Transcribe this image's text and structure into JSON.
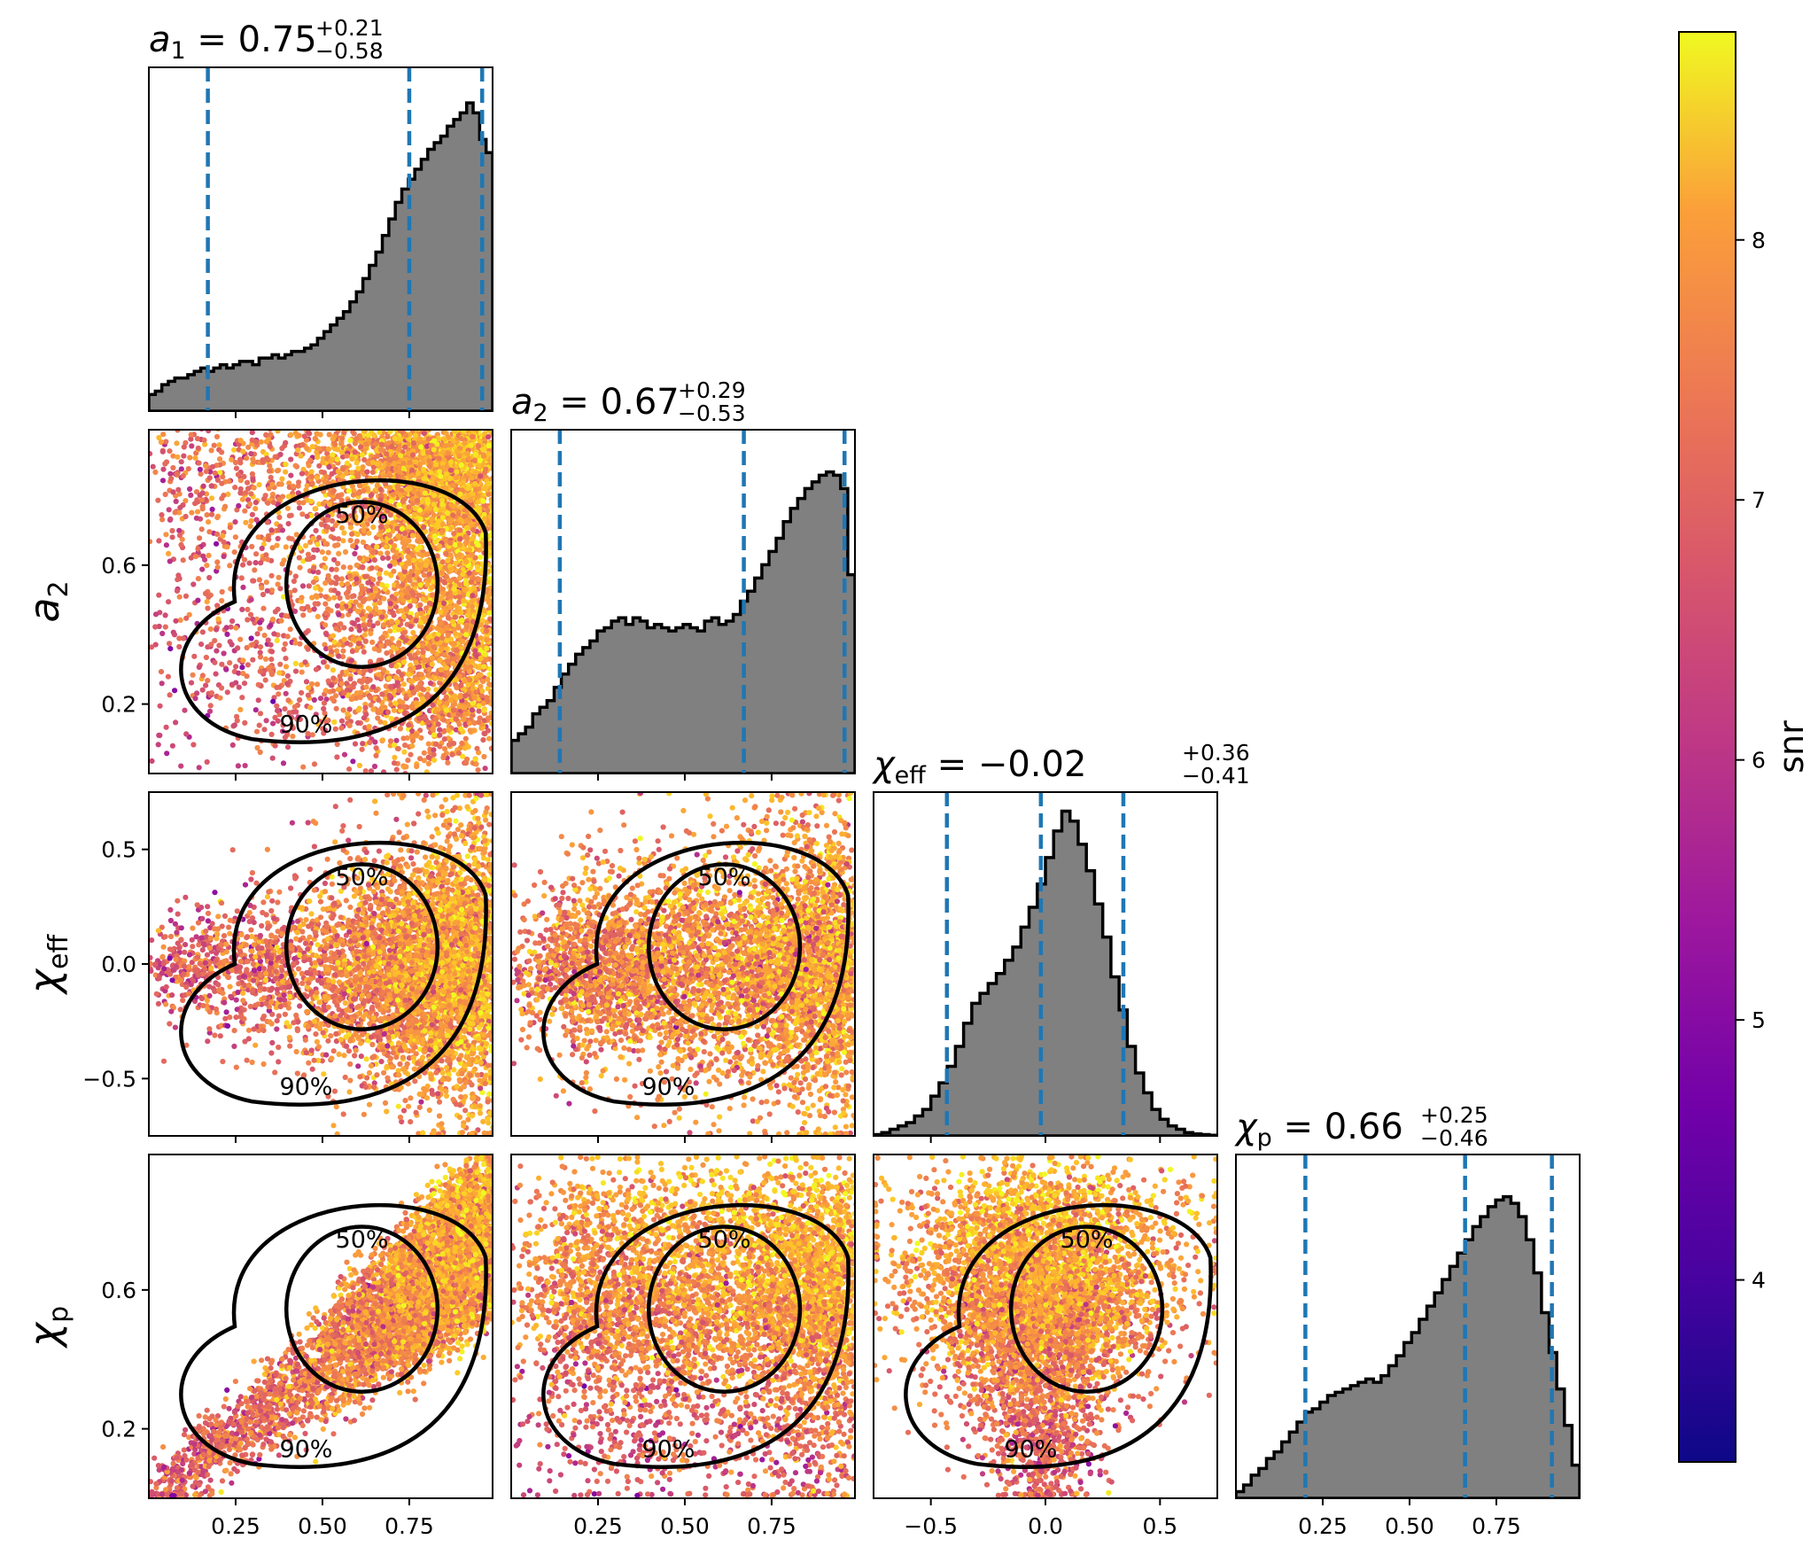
{
  "chart_data": {
    "type": "scatter",
    "kind": "corner-plot",
    "parameters": [
      {
        "key": "a1",
        "label": "a_1",
        "range": [
          0.0,
          0.99
        ],
        "ticks": [
          0.25,
          0.5,
          0.75
        ],
        "tick_labels": [
          "0.25",
          "0.50",
          "0.75"
        ],
        "median": 0.75,
        "plus": 0.21,
        "minus": 0.58,
        "title_main": "a",
        "title_sub": "1",
        "title_eq": " = 0.75",
        "title_sup": "+0.21",
        "title_inf": "−0.58",
        "axis_main": "a",
        "axis_sub": "1",
        "hist": [
          0.05,
          0.06,
          0.08,
          0.09,
          0.1,
          0.1,
          0.11,
          0.12,
          0.13,
          0.12,
          0.13,
          0.14,
          0.13,
          0.14,
          0.15,
          0.15,
          0.14,
          0.16,
          0.16,
          0.17,
          0.16,
          0.17,
          0.18,
          0.18,
          0.19,
          0.2,
          0.22,
          0.24,
          0.26,
          0.28,
          0.3,
          0.33,
          0.36,
          0.4,
          0.44,
          0.48,
          0.53,
          0.58,
          0.63,
          0.67,
          0.7,
          0.73,
          0.76,
          0.79,
          0.81,
          0.83,
          0.86,
          0.88,
          0.9,
          0.93,
          0.9,
          0.82,
          0.78
        ],
        "quantiles": [
          0.17,
          0.75,
          0.96
        ]
      },
      {
        "key": "a2",
        "label": "a_2",
        "range": [
          0.0,
          0.99
        ],
        "ticks": [
          0.25,
          0.5,
          0.75
        ],
        "tick_labels": [
          "0.25",
          "0.50",
          "0.75"
        ],
        "median": 0.67,
        "plus": 0.29,
        "minus": 0.53,
        "title_main": "a",
        "title_sub": "2",
        "title_eq": " = 0.67",
        "title_sup": "+0.29",
        "title_inf": "−0.53",
        "axis_main": "a",
        "axis_sub": "2",
        "hist": [
          0.1,
          0.12,
          0.14,
          0.18,
          0.2,
          0.22,
          0.26,
          0.3,
          0.33,
          0.36,
          0.38,
          0.4,
          0.43,
          0.44,
          0.46,
          0.47,
          0.45,
          0.47,
          0.46,
          0.44,
          0.45,
          0.44,
          0.43,
          0.44,
          0.45,
          0.44,
          0.43,
          0.46,
          0.47,
          0.45,
          0.46,
          0.48,
          0.52,
          0.55,
          0.59,
          0.63,
          0.67,
          0.71,
          0.76,
          0.8,
          0.83,
          0.86,
          0.88,
          0.9,
          0.91,
          0.9,
          0.86,
          0.6
        ],
        "quantiles": [
          0.14,
          0.67,
          0.96
        ]
      },
      {
        "key": "chi_eff",
        "label": "χ_eff",
        "range": [
          -0.75,
          0.75
        ],
        "ticks": [
          -0.5,
          0.0,
          0.5
        ],
        "tick_labels": [
          "−0.5",
          "0.0",
          "0.5"
        ],
        "median": -0.02,
        "plus": 0.36,
        "minus": 0.41,
        "title_main": "χ",
        "title_sub": "eff",
        "title_eq": " = −0.02",
        "title_sup": "+0.36",
        "title_inf": "−0.41",
        "axis_main": "χ",
        "axis_sub": "eff",
        "hist": [
          0.004,
          0.01,
          0.02,
          0.03,
          0.04,
          0.06,
          0.08,
          0.12,
          0.16,
          0.21,
          0.27,
          0.34,
          0.4,
          0.43,
          0.46,
          0.49,
          0.53,
          0.57,
          0.63,
          0.69,
          0.76,
          0.84,
          0.92,
          0.98,
          0.95,
          0.88,
          0.8,
          0.7,
          0.6,
          0.48,
          0.38,
          0.27,
          0.19,
          0.13,
          0.08,
          0.05,
          0.03,
          0.02,
          0.01,
          0.006,
          0.004,
          0.002
        ],
        "quantiles": [
          -0.43,
          -0.02,
          0.34
        ]
      },
      {
        "key": "chi_p",
        "label": "χ_p",
        "range": [
          0.0,
          0.99
        ],
        "ticks": [
          0.25,
          0.5,
          0.75
        ],
        "tick_labels": [
          "0.25",
          "0.50",
          "0.75"
        ],
        "median": 0.66,
        "plus": 0.25,
        "minus": 0.46,
        "title_main": "χ",
        "title_sub": "p",
        "title_eq": " = 0.66",
        "title_sup": "+0.25",
        "title_inf": "−0.46",
        "axis_main": "χ",
        "axis_sub": "p",
        "hist": [
          0.02,
          0.04,
          0.07,
          0.09,
          0.12,
          0.14,
          0.17,
          0.2,
          0.23,
          0.26,
          0.27,
          0.29,
          0.31,
          0.32,
          0.33,
          0.34,
          0.35,
          0.36,
          0.35,
          0.37,
          0.4,
          0.43,
          0.47,
          0.5,
          0.54,
          0.58,
          0.62,
          0.66,
          0.7,
          0.74,
          0.78,
          0.82,
          0.85,
          0.88,
          0.9,
          0.91,
          0.89,
          0.85,
          0.78,
          0.68,
          0.56,
          0.44,
          0.33,
          0.22,
          0.1
        ],
        "quantiles": [
          0.2,
          0.66,
          0.91
        ]
      }
    ],
    "y_ticks": {
      "a2": [
        {
          "value": 0.2,
          "label": "0.2"
        },
        {
          "value": 0.6,
          "label": "0.6"
        }
      ],
      "chi_eff": [
        {
          "value": -0.5,
          "label": "−0.5"
        },
        {
          "value": 0.0,
          "label": "0.0"
        },
        {
          "value": 0.5,
          "label": "0.5"
        }
      ],
      "chi_p": [
        {
          "value": 0.2,
          "label": "0.2"
        },
        {
          "value": 0.6,
          "label": "0.6"
        }
      ]
    },
    "contour_levels": [
      "50%",
      "90%"
    ],
    "colorbar": {
      "label": "snr",
      "range": [
        3.3,
        8.8
      ],
      "ticks": [
        4,
        5,
        6,
        7,
        8
      ],
      "colormap": "plasma"
    },
    "colors": {
      "histogram_fill": "#808080",
      "quantile_line": "#1f77b4",
      "contour": "#000000",
      "scatter_low": "#d1436f",
      "scatter_high": "#f3ef27"
    },
    "grid": false
  }
}
